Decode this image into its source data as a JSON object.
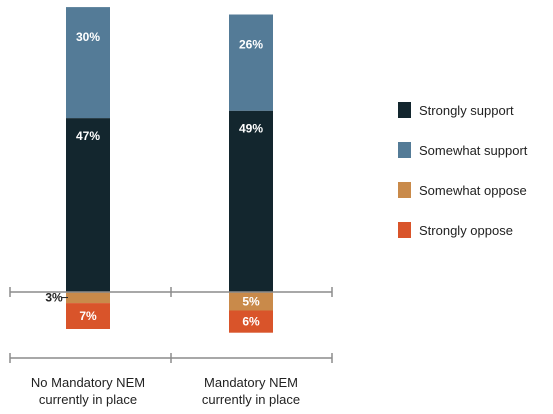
{
  "chart_data": {
    "type": "bar",
    "stacked": true,
    "diverging": true,
    "categories": [
      "No Mandatory NEM currently in place",
      "Mandatory NEM currently in place"
    ],
    "category_lines": [
      [
        "No Mandatory NEM",
        "currently in place"
      ],
      [
        "Mandatory NEM",
        "currently in place"
      ]
    ],
    "series": [
      {
        "name": "Strongly support",
        "color": "#13262e",
        "direction": "up",
        "values": [
          47,
          49
        ],
        "labels": [
          "47%",
          "49%"
        ]
      },
      {
        "name": "Somewhat support",
        "color": "#547b97",
        "direction": "up",
        "values": [
          30,
          26
        ],
        "labels": [
          "30%",
          "26%"
        ]
      },
      {
        "name": "Somewhat oppose",
        "color": "#c98a4a",
        "direction": "down",
        "values": [
          3,
          5
        ],
        "labels": [
          "3%",
          "5%"
        ]
      },
      {
        "name": "Strongly oppose",
        "color": "#d9542a",
        "direction": "down",
        "values": [
          7,
          6
        ],
        "labels": [
          "7%",
          "6%"
        ]
      }
    ],
    "legend_position": "right",
    "grid": false
  }
}
